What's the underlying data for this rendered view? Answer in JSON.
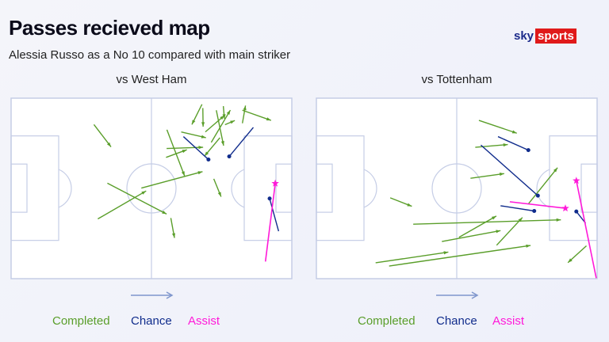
{
  "header": {
    "title": "Passes recieved map",
    "subtitle": "Alessia Russo as a No 10 compared with main striker",
    "logo": {
      "sky": "sky",
      "sports": "sports"
    }
  },
  "colors": {
    "completed": "#5a9e2a",
    "chance": "#102c8c",
    "assist": "#ff1ad9",
    "pitch_lines": "#c5cde6"
  },
  "chart_data": [
    {
      "type": "pass-map",
      "title": "vs West Ham",
      "attack_direction": "right",
      "legend": [
        "Completed",
        "Chance",
        "Assist"
      ],
      "completed": [
        [
          29.5,
          14.6,
          35.6,
          27.0
        ],
        [
          34.3,
          47.1,
          55.4,
          64.2
        ],
        [
          30.9,
          66.9,
          48.1,
          51.4
        ],
        [
          46.4,
          49.8,
          68.2,
          40.7
        ],
        [
          55.5,
          17.5,
          61.8,
          43.1
        ],
        [
          56.9,
          66.4,
          58.2,
          77.4
        ],
        [
          55.2,
          32.8,
          62.6,
          28.6
        ],
        [
          55.4,
          27.9,
          68.4,
          27.2
        ],
        [
          60.6,
          18.7,
          69.4,
          21.9
        ],
        [
          68.0,
          3.4,
          64.4,
          14.6
        ],
        [
          68.3,
          5.5,
          68.4,
          15.8
        ],
        [
          69.2,
          18.7,
          76.0,
          9.6
        ],
        [
          71.3,
          24.5,
          78.1,
          6.6
        ],
        [
          73.1,
          6.7,
          75.7,
          26.3
        ],
        [
          75.6,
          4.4,
          76.0,
          11.4
        ],
        [
          76.2,
          14.7,
          79.7,
          12.4
        ],
        [
          74.4,
          21.9,
          68.9,
          32.1
        ],
        [
          72.2,
          44.7,
          74.8,
          54.6
        ],
        [
          82.4,
          13.9,
          83.5,
          4.1
        ],
        [
          82.4,
          6.7,
          92.6,
          12.3
        ]
      ],
      "chance": [
        [
          61.4,
          21.3,
          70.3,
          34.0
        ],
        [
          86.3,
          16.2,
          77.7,
          32.3
        ],
        [
          95.3,
          73.7,
          92.1,
          55.6
        ]
      ],
      "assist": [
        [
          90.6,
          90.5,
          94.1,
          47.2
        ]
      ]
    },
    {
      "type": "pass-map",
      "title": "vs Tottenham",
      "attack_direction": "right",
      "legend": [
        "Completed",
        "Chance",
        "Assist"
      ],
      "completed": [
        [
          57.9,
          12.3,
          71.4,
          19.4
        ],
        [
          56.6,
          27.2,
          68.2,
          25.7
        ],
        [
          54.9,
          44.4,
          66.9,
          41.8
        ],
        [
          26.3,
          55.2,
          34.0,
          59.9
        ],
        [
          34.5,
          69.8,
          87.1,
          67.4
        ],
        [
          50.8,
          77.1,
          64.1,
          65.3
        ],
        [
          44.7,
          79.4,
          65.6,
          73.4
        ],
        [
          64.2,
          81.5,
          73.4,
          66.1
        ],
        [
          75.6,
          58.4,
          85.9,
          38.5
        ],
        [
          21.1,
          91.2,
          47.0,
          85.3
        ],
        [
          25.9,
          93.0,
          76.3,
          81.6
        ],
        [
          96.2,
          81.8,
          89.6,
          91.1
        ]
      ],
      "chance": [
        [
          64.7,
          21.3,
          75.5,
          28.8
        ],
        [
          58.6,
          26.0,
          78.9,
          54.0
        ],
        [
          65.6,
          59.6,
          77.6,
          62.5
        ],
        [
          95.9,
          69.3,
          92.6,
          62.8
        ]
      ],
      "assist": [
        [
          68.9,
          57.4,
          88.7,
          61.0
        ],
        [
          99.7,
          99.7,
          92.6,
          45.7
        ]
      ]
    }
  ]
}
